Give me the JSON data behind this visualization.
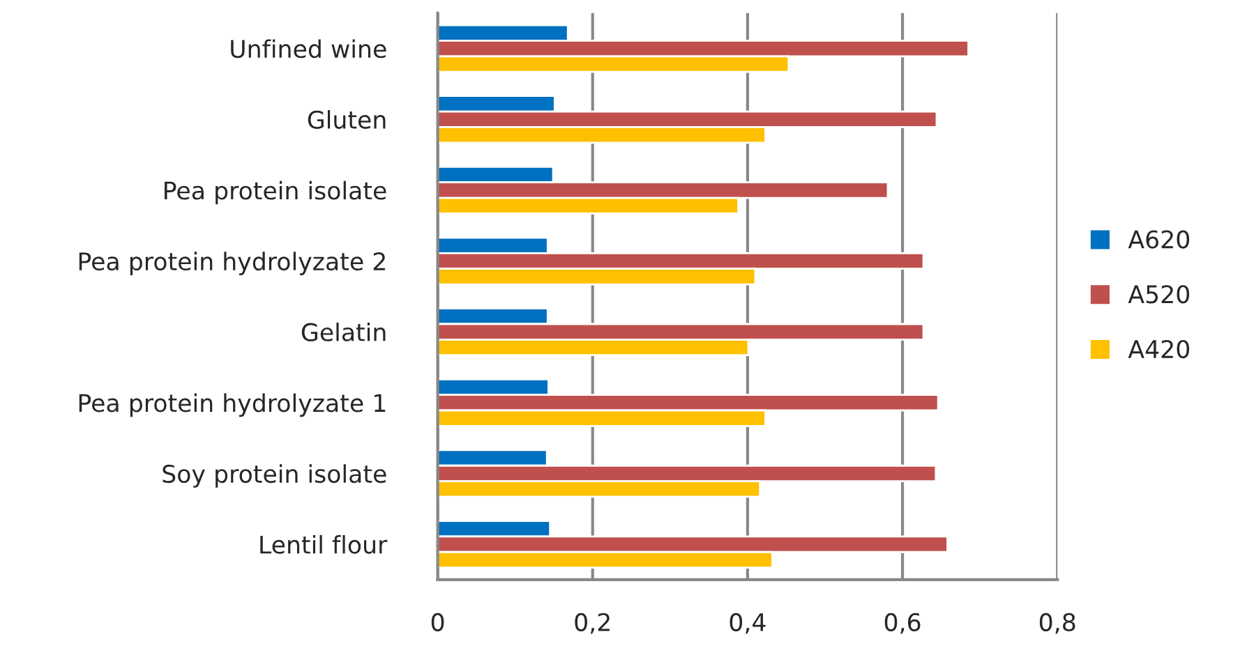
{
  "chart_data": {
    "type": "bar",
    "orientation": "horizontal",
    "categories": [
      "Unfined wine",
      "Gluten",
      "Pea protein isolate",
      "Pea protein hydrolyzate 2",
      "Gelatin",
      "Pea protein hydrolyzate 1",
      "Soy protein isolate",
      "Lentil flour"
    ],
    "series": [
      {
        "name": "A620",
        "color": "#0070c0",
        "values": [
          0.168,
          0.151,
          0.149,
          0.142,
          0.142,
          0.143,
          0.141,
          0.145
        ]
      },
      {
        "name": "A520",
        "color": "#c0504d",
        "values": [
          0.685,
          0.644,
          0.581,
          0.627,
          0.627,
          0.646,
          0.643,
          0.658
        ]
      },
      {
        "name": "A420",
        "color": "#ffc000",
        "values": [
          0.453,
          0.423,
          0.388,
          0.41,
          0.401,
          0.423,
          0.416,
          0.432
        ]
      }
    ],
    "xlim": [
      0,
      0.8
    ],
    "xticks": [
      0,
      {
        "value": 0.2,
        "label": "0,2"
      },
      {
        "value": 0.4,
        "label": "0,4"
      },
      {
        "value": 0.6,
        "label": "0,6"
      },
      {
        "value": 0.8,
        "label": "0,8"
      }
    ],
    "grid": "x",
    "legend": "right"
  }
}
